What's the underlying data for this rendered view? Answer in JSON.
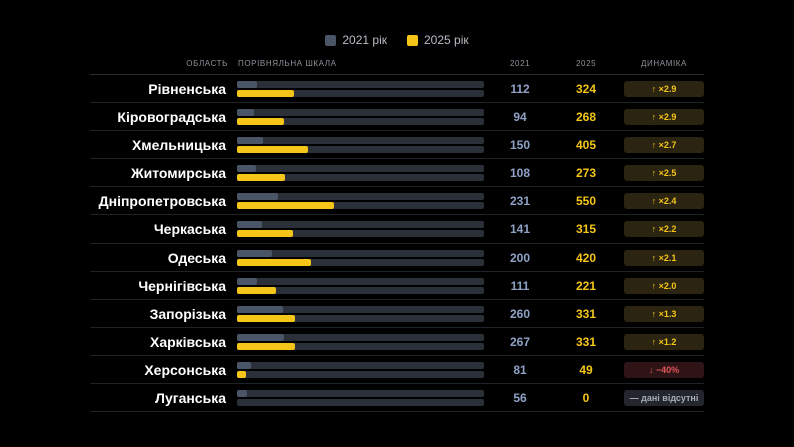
{
  "chart_data": {
    "type": "bar",
    "series": [
      {
        "name": "2021 рік",
        "color": "#4a5668"
      },
      {
        "name": "2025 рік",
        "color": "#f5c518"
      }
    ],
    "scale_max": 1400,
    "headers": {
      "region": "ОБЛАСТЬ",
      "scale": "ПОРІВНЯЛЬНА ШКАЛА",
      "y2021": "2021",
      "y2025": "2025",
      "dynamics": "ДИНАМІКА"
    },
    "rows": [
      {
        "region": "Рівненська",
        "v2021": 112,
        "v2025": 324,
        "dynamics": "↑ ×2.9",
        "trend": "up"
      },
      {
        "region": "Кіровоградська",
        "v2021": 94,
        "v2025": 268,
        "dynamics": "↑ ×2.9",
        "trend": "up"
      },
      {
        "region": "Хмельницька",
        "v2021": 150,
        "v2025": 405,
        "dynamics": "↑ ×2.7",
        "trend": "up"
      },
      {
        "region": "Житомирська",
        "v2021": 108,
        "v2025": 273,
        "dynamics": "↑ ×2.5",
        "trend": "up"
      },
      {
        "region": "Дніпропетровська",
        "v2021": 231,
        "v2025": 550,
        "dynamics": "↑ ×2.4",
        "trend": "up"
      },
      {
        "region": "Черкаська",
        "v2021": 141,
        "v2025": 315,
        "dynamics": "↑ ×2.2",
        "trend": "up"
      },
      {
        "region": "Одеська",
        "v2021": 200,
        "v2025": 420,
        "dynamics": "↑ ×2.1",
        "trend": "up"
      },
      {
        "region": "Чернігівська",
        "v2021": 111,
        "v2025": 221,
        "dynamics": "↑ ×2.0",
        "trend": "up"
      },
      {
        "region": "Запорізька",
        "v2021": 260,
        "v2025": 331,
        "dynamics": "↑ ×1.3",
        "trend": "up"
      },
      {
        "region": "Харківська",
        "v2021": 267,
        "v2025": 331,
        "dynamics": "↑ ×1.2",
        "trend": "up"
      },
      {
        "region": "Херсонська",
        "v2021": 81,
        "v2025": 49,
        "dynamics": "↓ −40%",
        "trend": "down"
      },
      {
        "region": "Луганська",
        "v2021": 56,
        "v2025": 0,
        "dynamics": "— дані відсутні",
        "trend": "na"
      }
    ]
  }
}
